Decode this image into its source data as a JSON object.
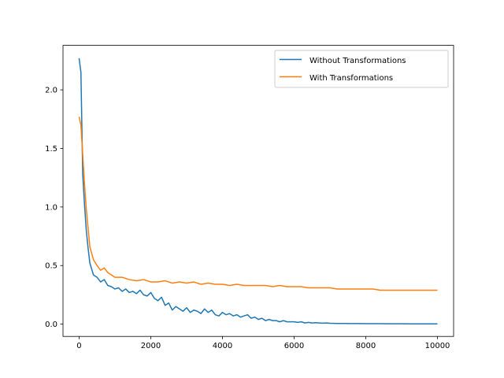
{
  "chart_data": {
    "type": "line",
    "title": "",
    "xlabel": "",
    "ylabel": "",
    "xlim": [
      -450,
      10450
    ],
    "ylim": [
      -0.105,
      2.38
    ],
    "x_ticks": [
      0,
      2000,
      4000,
      6000,
      8000,
      10000
    ],
    "x_tick_labels": [
      "0",
      "2000",
      "4000",
      "6000",
      "8000",
      "10000"
    ],
    "y_ticks": [
      0.0,
      0.5,
      1.0,
      1.5,
      2.0
    ],
    "y_tick_labels": [
      "0.0",
      "0.5",
      "1.0",
      "1.5",
      "2.0"
    ],
    "grid": false,
    "legend_position": "top-right",
    "series": [
      {
        "name": "Without Transformations",
        "color": "#1f77b4",
        "x": [
          0,
          50,
          100,
          150,
          200,
          250,
          300,
          400,
          500,
          600,
          700,
          800,
          900,
          1000,
          1100,
          1200,
          1300,
          1400,
          1500,
          1600,
          1700,
          1800,
          1900,
          2000,
          2100,
          2200,
          2300,
          2400,
          2500,
          2600,
          2700,
          2800,
          2900,
          3000,
          3100,
          3200,
          3300,
          3400,
          3500,
          3600,
          3700,
          3800,
          3900,
          4000,
          4100,
          4200,
          4300,
          4400,
          4500,
          4600,
          4700,
          4800,
          4900,
          5000,
          5100,
          5200,
          5300,
          5400,
          5500,
          5600,
          5700,
          5800,
          5900,
          6000,
          6100,
          6200,
          6300,
          6400,
          6500,
          6600,
          6700,
          6800,
          6900,
          7000,
          7200,
          7400,
          7600,
          7800,
          8000,
          8200,
          8400,
          8600,
          8800,
          9000,
          9200,
          9400,
          9600,
          9800,
          10000
        ],
        "y": [
          2.27,
          2.15,
          1.28,
          1.02,
          0.8,
          0.65,
          0.52,
          0.42,
          0.4,
          0.36,
          0.38,
          0.33,
          0.32,
          0.3,
          0.31,
          0.28,
          0.3,
          0.27,
          0.28,
          0.26,
          0.29,
          0.25,
          0.24,
          0.27,
          0.22,
          0.2,
          0.23,
          0.16,
          0.18,
          0.12,
          0.15,
          0.13,
          0.11,
          0.14,
          0.1,
          0.12,
          0.11,
          0.09,
          0.13,
          0.1,
          0.12,
          0.08,
          0.07,
          0.1,
          0.08,
          0.09,
          0.07,
          0.08,
          0.06,
          0.07,
          0.08,
          0.05,
          0.06,
          0.04,
          0.05,
          0.03,
          0.04,
          0.03,
          0.03,
          0.02,
          0.03,
          0.02,
          0.02,
          0.02,
          0.015,
          0.02,
          0.01,
          0.015,
          0.01,
          0.012,
          0.01,
          0.008,
          0.01,
          0.007,
          0.006,
          0.006,
          0.005,
          0.005,
          0.004,
          0.004,
          0.004,
          0.003,
          0.003,
          0.003,
          0.002,
          0.002,
          0.002,
          0.002,
          0.002
        ]
      },
      {
        "name": "With Transformations",
        "color": "#ff7f0e",
        "x": [
          0,
          50,
          100,
          150,
          200,
          250,
          300,
          400,
          500,
          600,
          700,
          800,
          900,
          1000,
          1200,
          1400,
          1600,
          1800,
          2000,
          2200,
          2400,
          2600,
          2800,
          3000,
          3200,
          3400,
          3600,
          3800,
          4000,
          4200,
          4400,
          4600,
          4800,
          5000,
          5200,
          5400,
          5600,
          5800,
          6000,
          6200,
          6400,
          6600,
          6800,
          7000,
          7200,
          7400,
          7600,
          7800,
          8000,
          8200,
          8400,
          8600,
          8800,
          9000,
          9200,
          9400,
          9600,
          9800,
          10000
        ],
        "y": [
          1.77,
          1.7,
          1.45,
          1.2,
          0.98,
          0.82,
          0.66,
          0.55,
          0.5,
          0.46,
          0.48,
          0.44,
          0.42,
          0.4,
          0.4,
          0.38,
          0.37,
          0.38,
          0.36,
          0.36,
          0.37,
          0.35,
          0.36,
          0.35,
          0.36,
          0.34,
          0.35,
          0.34,
          0.34,
          0.33,
          0.34,
          0.33,
          0.33,
          0.33,
          0.33,
          0.32,
          0.33,
          0.32,
          0.32,
          0.32,
          0.31,
          0.31,
          0.31,
          0.31,
          0.3,
          0.3,
          0.3,
          0.3,
          0.3,
          0.3,
          0.29,
          0.29,
          0.29,
          0.29,
          0.29,
          0.29,
          0.29,
          0.29,
          0.29
        ]
      }
    ]
  }
}
